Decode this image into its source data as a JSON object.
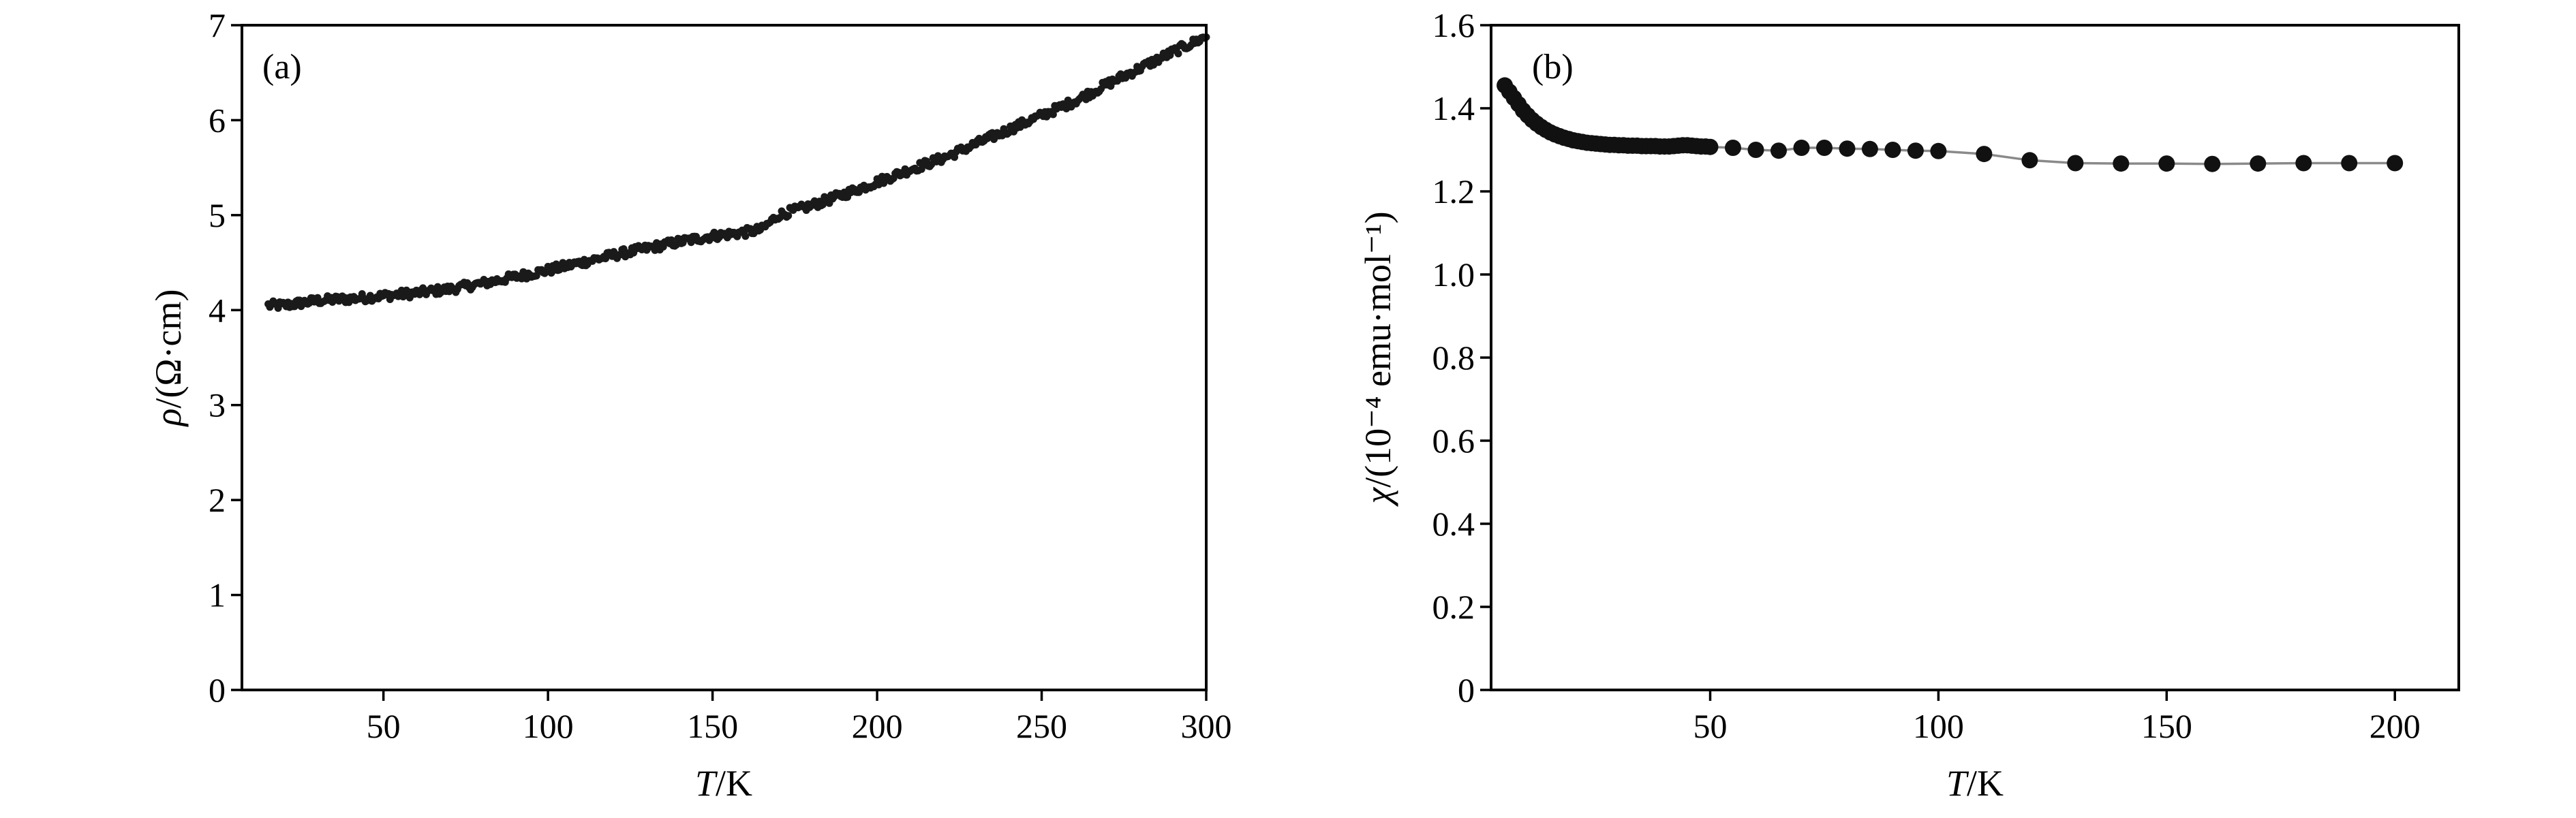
{
  "chart_data": [
    {
      "type": "scatter",
      "panel_label": "(a)",
      "xlabel": {
        "italic": "T",
        "rest": "/K"
      },
      "ylabel": {
        "italic": "ρ",
        "rest": "/(Ω·cm)"
      },
      "xlim": [
        7,
        300
      ],
      "ylim": [
        0,
        7
      ],
      "xticks": [
        50,
        100,
        150,
        200,
        250,
        300
      ],
      "yticks": [
        0,
        1,
        2,
        3,
        4,
        5,
        6,
        7
      ],
      "grid": false,
      "marker": "small filled circles",
      "key_points": [
        [
          15,
          4.05
        ],
        [
          20,
          4.05
        ],
        [
          30,
          4.1
        ],
        [
          40,
          4.12
        ],
        [
          50,
          4.15
        ],
        [
          60,
          4.18
        ],
        [
          70,
          4.22
        ],
        [
          80,
          4.28
        ],
        [
          90,
          4.35
        ],
        [
          100,
          4.42
        ],
        [
          110,
          4.5
        ],
        [
          120,
          4.58
        ],
        [
          130,
          4.65
        ],
        [
          140,
          4.72
        ],
        [
          150,
          4.78
        ],
        [
          160,
          4.82
        ],
        [
          165,
          4.85
        ],
        [
          170,
          5.0
        ],
        [
          180,
          5.1
        ],
        [
          190,
          5.22
        ],
        [
          200,
          5.35
        ],
        [
          210,
          5.48
        ],
        [
          220,
          5.6
        ],
        [
          230,
          5.75
        ],
        [
          240,
          5.9
        ],
        [
          250,
          6.05
        ],
        [
          260,
          6.2
        ],
        [
          270,
          6.38
        ],
        [
          280,
          6.55
        ],
        [
          290,
          6.72
        ],
        [
          300,
          6.88
        ]
      ]
    },
    {
      "type": "scatter",
      "panel_label": "(b)",
      "xlabel": {
        "italic": "T",
        "rest": "/K"
      },
      "ylabel": {
        "italic": "χ",
        "rest": "/(10⁻⁴ emu·mol⁻¹)"
      },
      "xlim": [
        2,
        214
      ],
      "ylim": [
        0,
        1.6
      ],
      "xticks": [
        50,
        100,
        150,
        200
      ],
      "yticks": [
        0,
        0.2,
        0.4,
        0.6,
        0.8,
        1.0,
        1.2,
        1.4,
        1.6
      ],
      "ytick_labels": [
        "0",
        "0.2",
        "0.4",
        "0.6",
        "0.8",
        "1.0",
        "1.2",
        "1.4",
        "1.6"
      ],
      "grid": false,
      "marker": "filled circles with connecting line",
      "x": [
        5,
        6,
        7,
        8,
        9,
        10,
        11,
        12,
        13,
        14,
        15,
        16,
        17,
        18,
        19,
        20,
        21,
        22,
        23,
        24,
        25,
        26,
        27,
        28,
        29,
        30,
        31,
        32,
        33,
        34,
        35,
        36,
        37,
        38,
        39,
        40,
        41,
        42,
        43,
        44,
        45,
        46,
        47,
        48,
        49,
        50,
        55,
        60,
        65,
        70,
        75,
        80,
        85,
        90,
        95,
        100,
        110,
        120,
        130,
        140,
        150,
        160,
        170,
        180,
        190,
        200
      ],
      "y": [
        1.455,
        1.44,
        1.425,
        1.41,
        1.395,
        1.383,
        1.372,
        1.363,
        1.355,
        1.348,
        1.342,
        1.337,
        1.333,
        1.329,
        1.326,
        1.323,
        1.321,
        1.319,
        1.317,
        1.316,
        1.315,
        1.314,
        1.313,
        1.312,
        1.312,
        1.311,
        1.311,
        1.31,
        1.31,
        1.31,
        1.309,
        1.309,
        1.309,
        1.309,
        1.308,
        1.308,
        1.308,
        1.309,
        1.31,
        1.311,
        1.311,
        1.31,
        1.309,
        1.308,
        1.308,
        1.307,
        1.305,
        1.3,
        1.298,
        1.305,
        1.305,
        1.303,
        1.302,
        1.3,
        1.298,
        1.297,
        1.29,
        1.275,
        1.268,
        1.267,
        1.267,
        1.266,
        1.267,
        1.268,
        1.268,
        1.268
      ]
    }
  ]
}
